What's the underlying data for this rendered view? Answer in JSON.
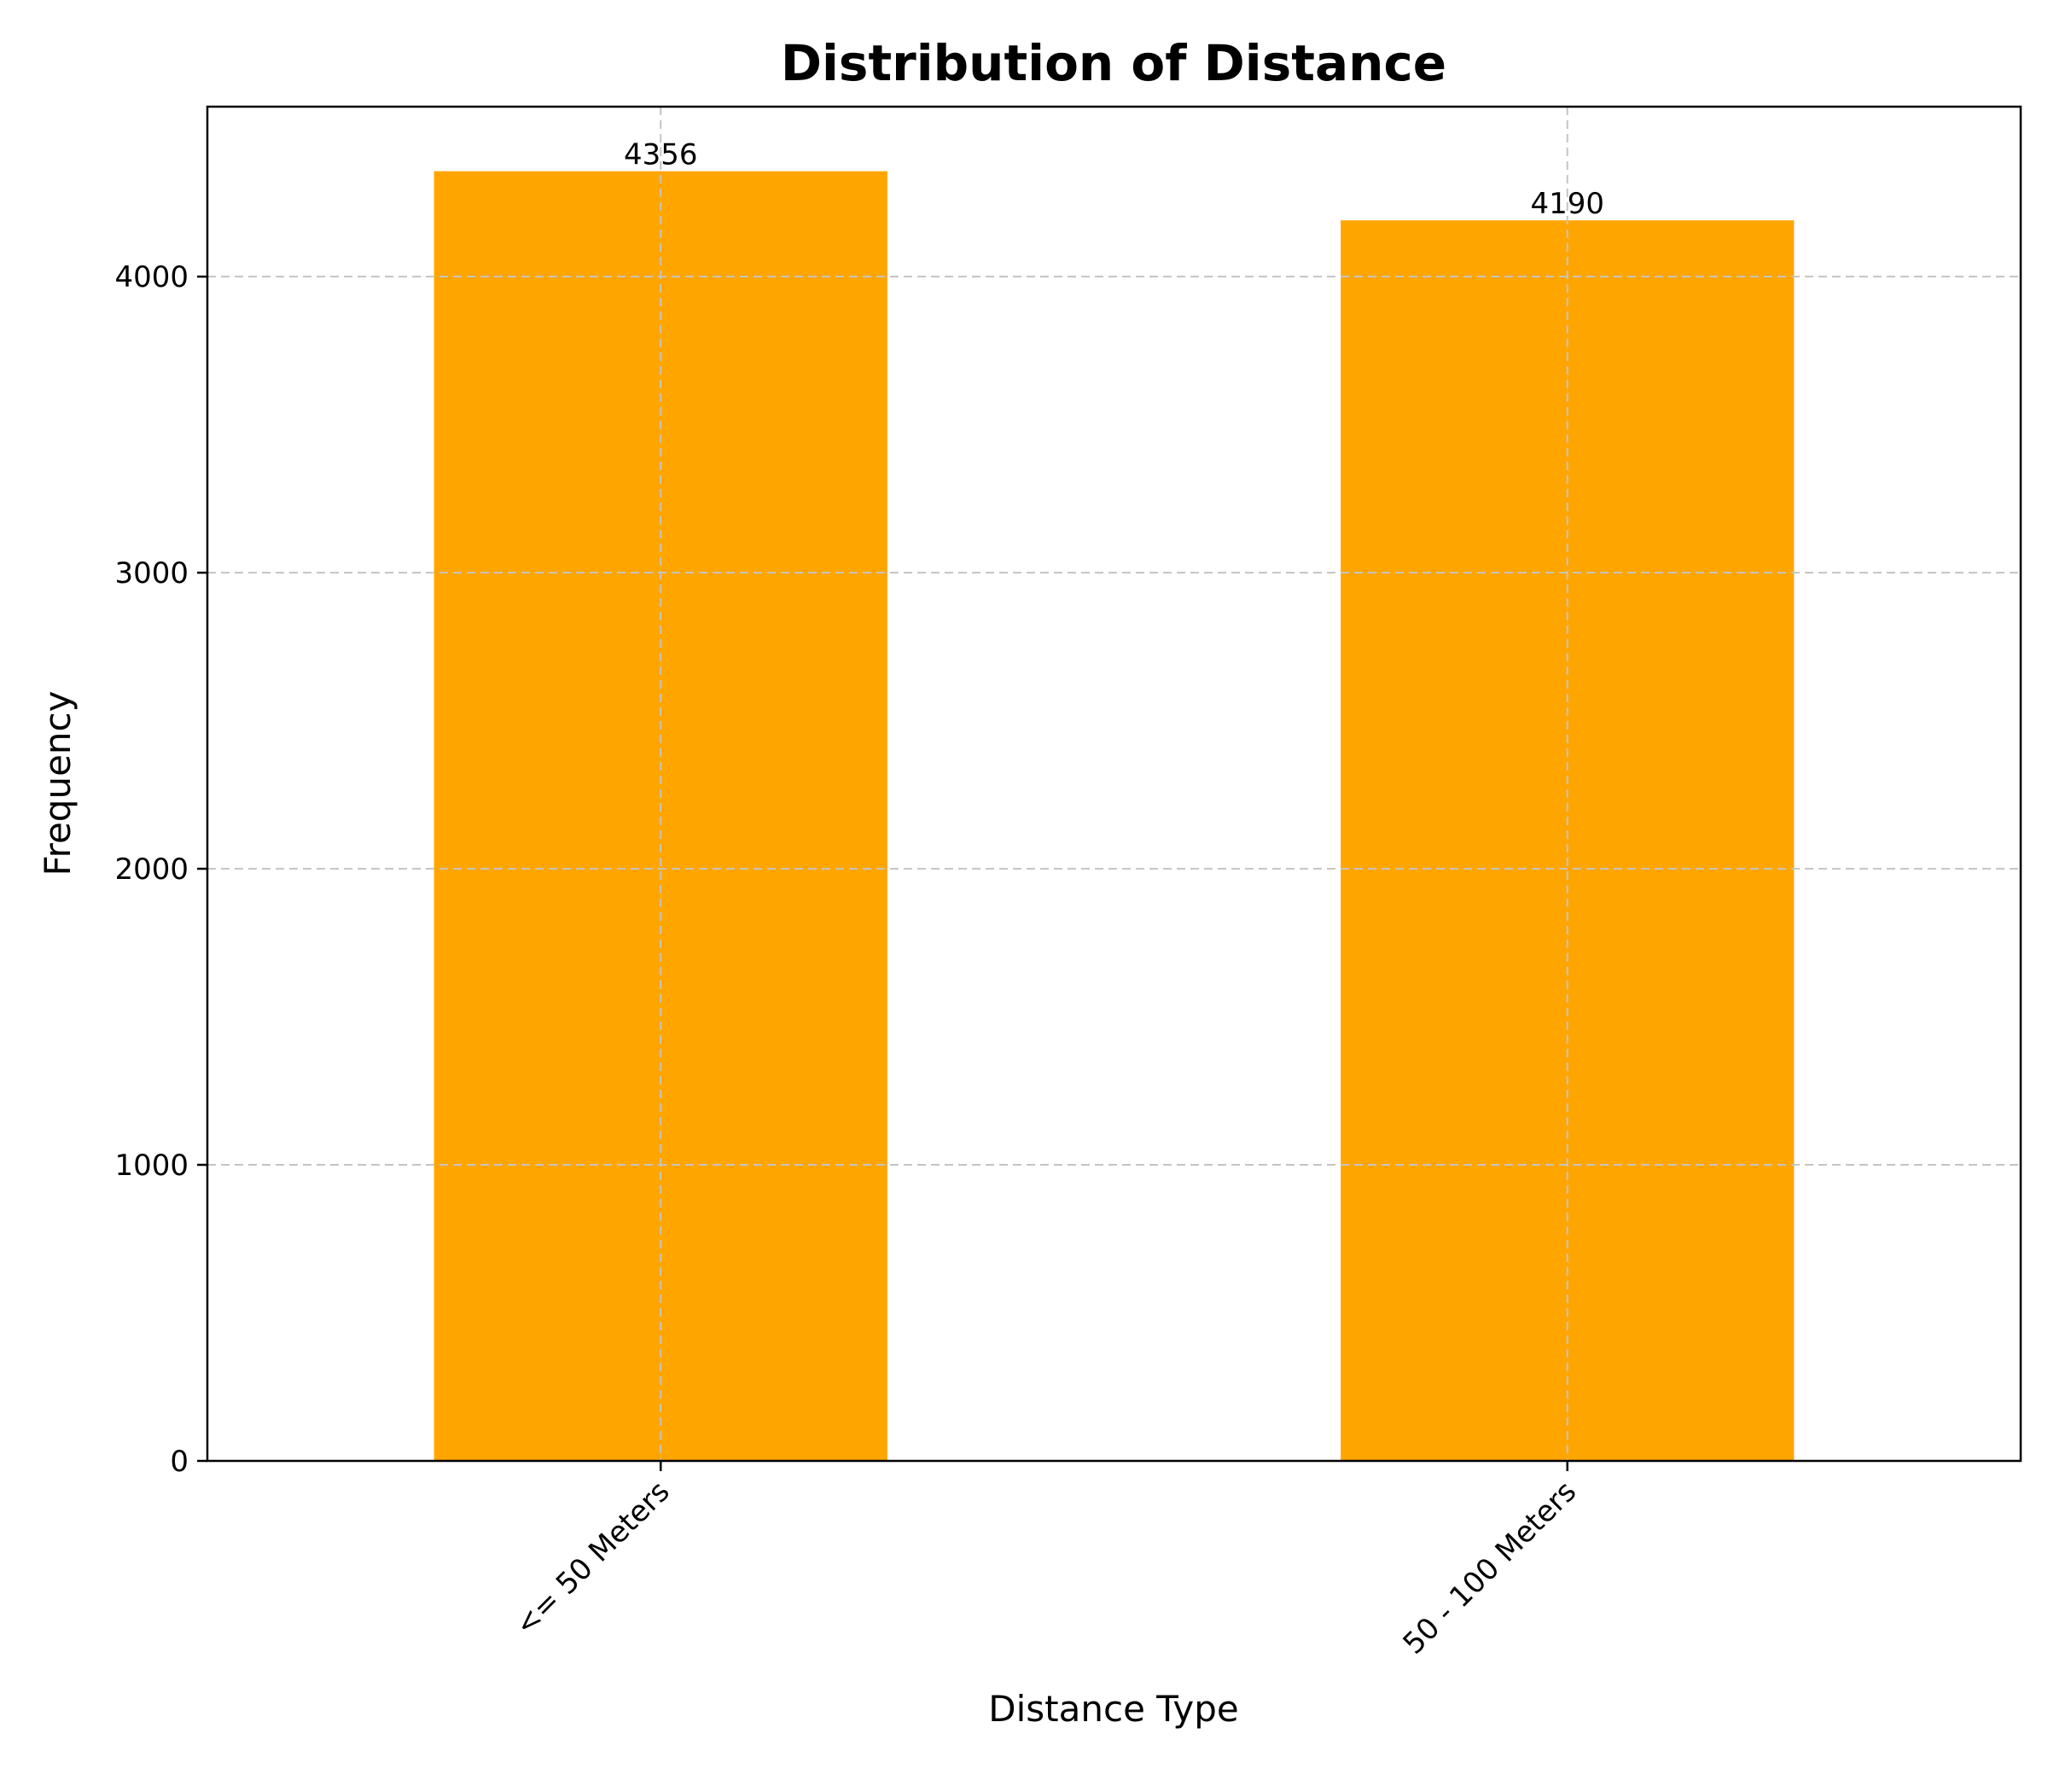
{
  "chart_data": {
    "type": "bar",
    "title": "Distribution of Distance",
    "xlabel": "Distance Type",
    "ylabel": "Frequency",
    "categories": [
      "<= 50 Meters",
      "50 - 100 Meters"
    ],
    "values": [
      4356,
      4190
    ],
    "data_labels": [
      "4356",
      "4190"
    ],
    "ylim": [
      0,
      4574
    ],
    "yticks": [
      0,
      1000,
      2000,
      3000,
      4000
    ],
    "ytick_labels": [
      "0",
      "1000",
      "2000",
      "3000",
      "4000"
    ],
    "bar_color": "#FFA500",
    "grid": true,
    "legend": "none"
  }
}
